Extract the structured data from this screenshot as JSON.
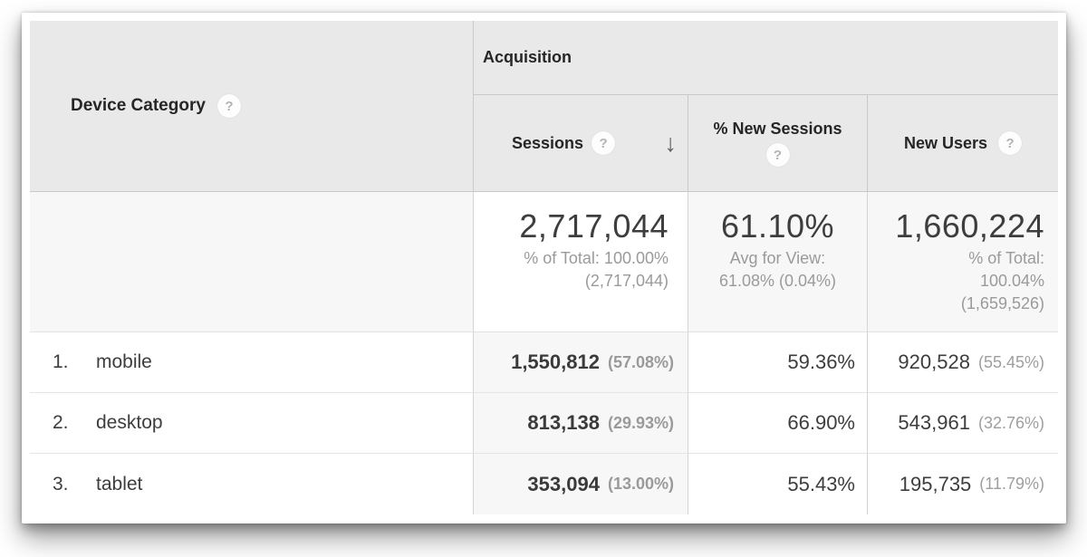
{
  "icons": {
    "help": "?",
    "sort_desc": "↓"
  },
  "colors": {
    "header_bg": "#e9e9e9",
    "highlight_bg": "#f7f7f7",
    "header_border": "#c9c9c9",
    "cell_border": "#d4d4d4",
    "row_divider": "#e5e5e5",
    "text_primary": "#3d3d3d",
    "text_muted": "#9a9a9a"
  },
  "table": {
    "dimension": {
      "label": "Device Category"
    },
    "group_header": "Acquisition",
    "columns": [
      {
        "label": "Sessions",
        "sorted": "descending"
      },
      {
        "label": "% New Sessions"
      },
      {
        "label": "New Users"
      }
    ],
    "summary": {
      "sessions": {
        "value": "2,717,044",
        "note_line1": "% of Total: 100.00%",
        "note_line2": "(2,717,044)"
      },
      "percent_new_sessions": {
        "value": "61.10%",
        "note_line1": "Avg for View:",
        "note_line2": "61.08% (0.04%)"
      },
      "new_users": {
        "value": "1,660,224",
        "note_line1": "% of Total:",
        "note_line2": "100.04%",
        "note_line3": "(1,659,526)"
      }
    },
    "rows": [
      {
        "rank": "1.",
        "device": "mobile",
        "sessions": "1,550,812",
        "sessions_share": "(57.08%)",
        "percent_new_sessions": "59.36%",
        "new_users": "920,528",
        "new_users_share": "(55.45%)"
      },
      {
        "rank": "2.",
        "device": "desktop",
        "sessions": "813,138",
        "sessions_share": "(29.93%)",
        "percent_new_sessions": "66.90%",
        "new_users": "543,961",
        "new_users_share": "(32.76%)"
      },
      {
        "rank": "3.",
        "device": "tablet",
        "sessions": "353,094",
        "sessions_share": "(13.00%)",
        "percent_new_sessions": "55.43%",
        "new_users": "195,735",
        "new_users_share": "(11.79%)"
      }
    ]
  }
}
